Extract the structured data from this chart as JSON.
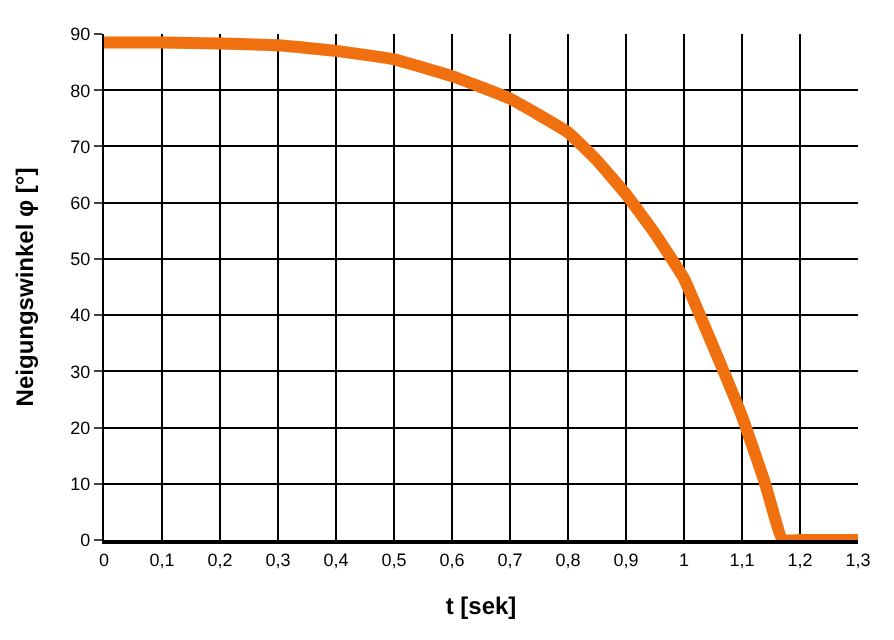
{
  "chart_data": {
    "type": "line",
    "xlabel": "t [sek]",
    "ylabel": "Neigungswinkel φ [°]",
    "x": [
      0,
      0.1,
      0.2,
      0.3,
      0.4,
      0.5,
      0.6,
      0.7,
      0.8,
      0.85,
      0.9,
      0.95,
      1.0,
      1.05,
      1.1,
      1.14,
      1.17,
      1.2,
      1.3
    ],
    "series": [
      {
        "color": "#f07010",
        "values": [
          88.5,
          88.5,
          88.3,
          88,
          87,
          85.5,
          82.5,
          78.5,
          72.5,
          67.5,
          61.5,
          54.5,
          46.5,
          34.5,
          22,
          10,
          0,
          0,
          0
        ]
      }
    ],
    "xlim": [
      0,
      1.3
    ],
    "ylim": [
      0,
      90
    ],
    "xticks": [
      0,
      {
        "value": 0.1,
        "label": "0,1"
      },
      {
        "value": 0.2,
        "label": "0,2"
      },
      {
        "value": 0.3,
        "label": "0,3"
      },
      {
        "value": 0.4,
        "label": "0,4"
      },
      {
        "value": 0.5,
        "label": "0,5"
      },
      {
        "value": 0.6,
        "label": "0,6"
      },
      {
        "value": 0.7,
        "label": "0,7"
      },
      {
        "value": 0.8,
        "label": "0,8"
      },
      {
        "value": 0.9,
        "label": "0,9"
      },
      1,
      {
        "value": 1.1,
        "label": "1,1"
      },
      {
        "value": 1.2,
        "label": "1,2"
      },
      {
        "value": 1.3,
        "label": "1,3"
      }
    ],
    "yticks": [
      0,
      10,
      20,
      30,
      40,
      50,
      60,
      70,
      80,
      90
    ],
    "grid": true,
    "marker": "none",
    "line_style": "solid",
    "legend": false
  }
}
